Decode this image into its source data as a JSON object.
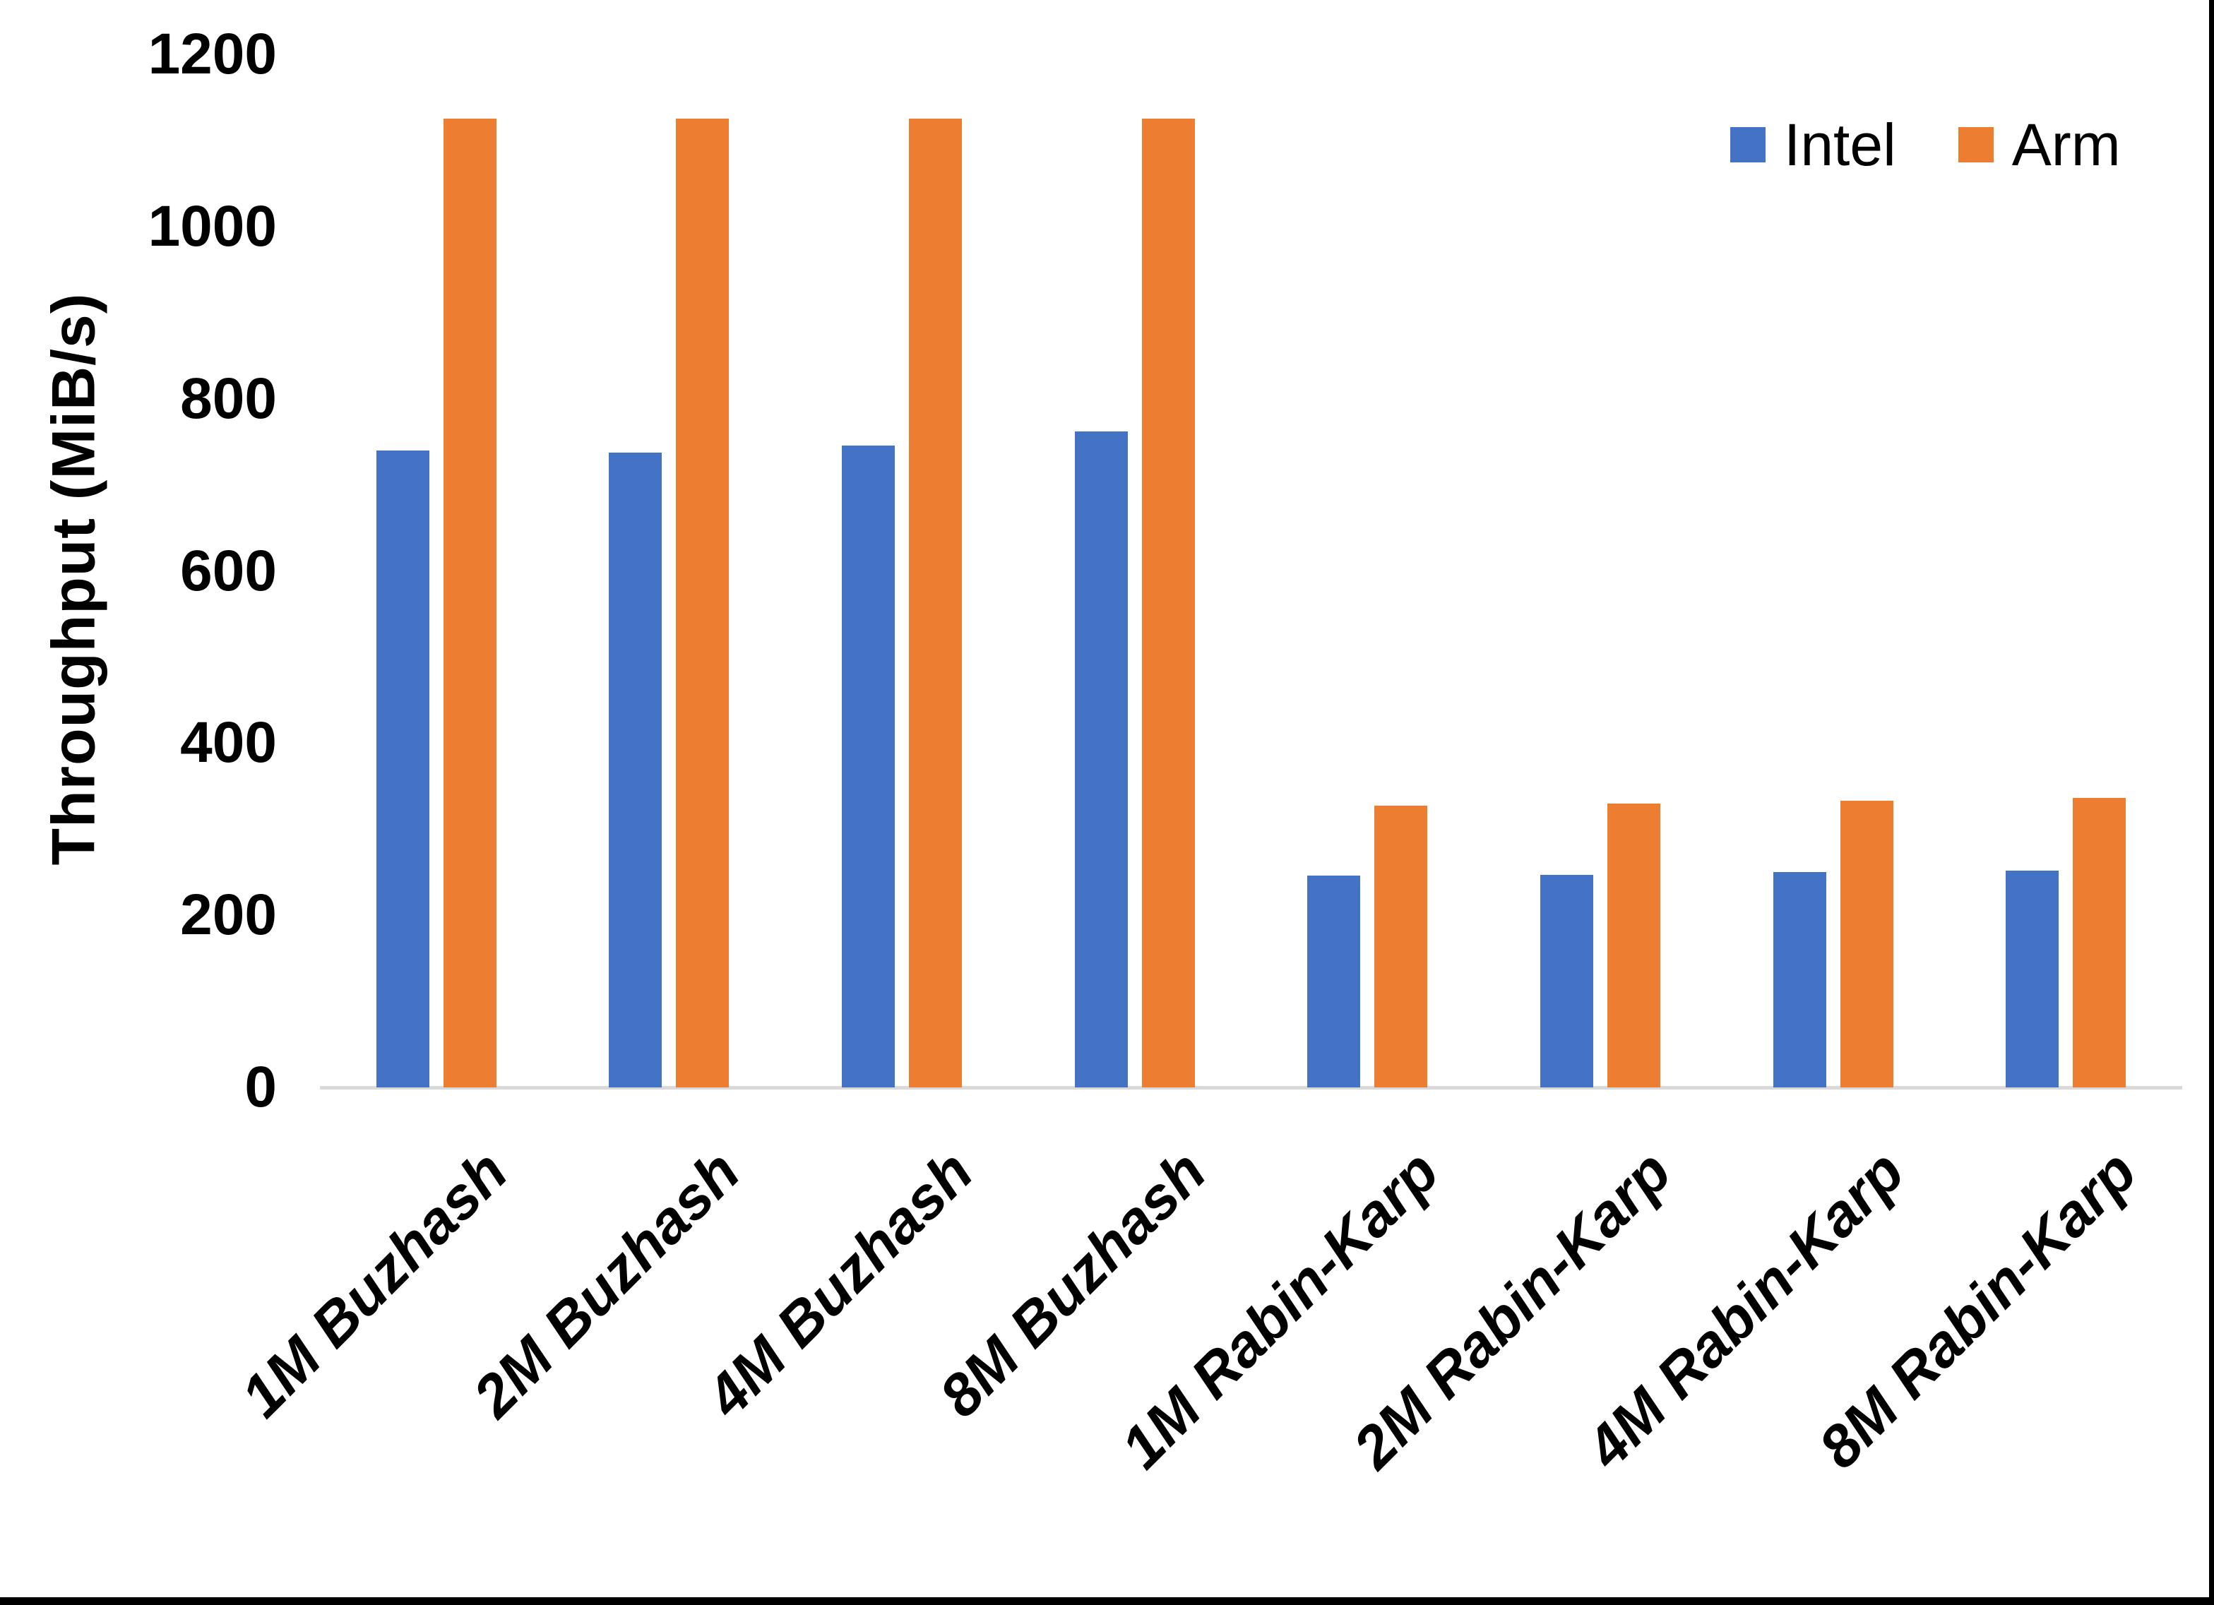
{
  "chart_data": {
    "type": "bar",
    "title": "",
    "xlabel": "",
    "ylabel": "Throughput (MiB/s)",
    "categories": [
      "1M Buzhash",
      "2M Buzhash",
      "4M Buzhash",
      "8M Buzhash",
      "1M Rabin-Karp",
      "2M Rabin-Karp",
      "4M Rabin-Karp",
      "8M Rabin-Karp"
    ],
    "series": [
      {
        "name": "Intel",
        "color": "#4472C4",
        "values": [
          740,
          737,
          746,
          762,
          246,
          247,
          250,
          252
        ]
      },
      {
        "name": "Arm",
        "color": "#ED7D31",
        "values": [
          1125,
          1125,
          1125,
          1125,
          327,
          330,
          333,
          336
        ]
      }
    ],
    "ylim": [
      0,
      1200
    ],
    "yticks": [
      0,
      200,
      400,
      600,
      800,
      1000,
      1200
    ],
    "grid": false,
    "legend_position": "top-right"
  },
  "colors": {
    "axis_line": "#d9d9d9",
    "text": "#000000",
    "window_edge": "#000000",
    "background": "#ffffff"
  }
}
